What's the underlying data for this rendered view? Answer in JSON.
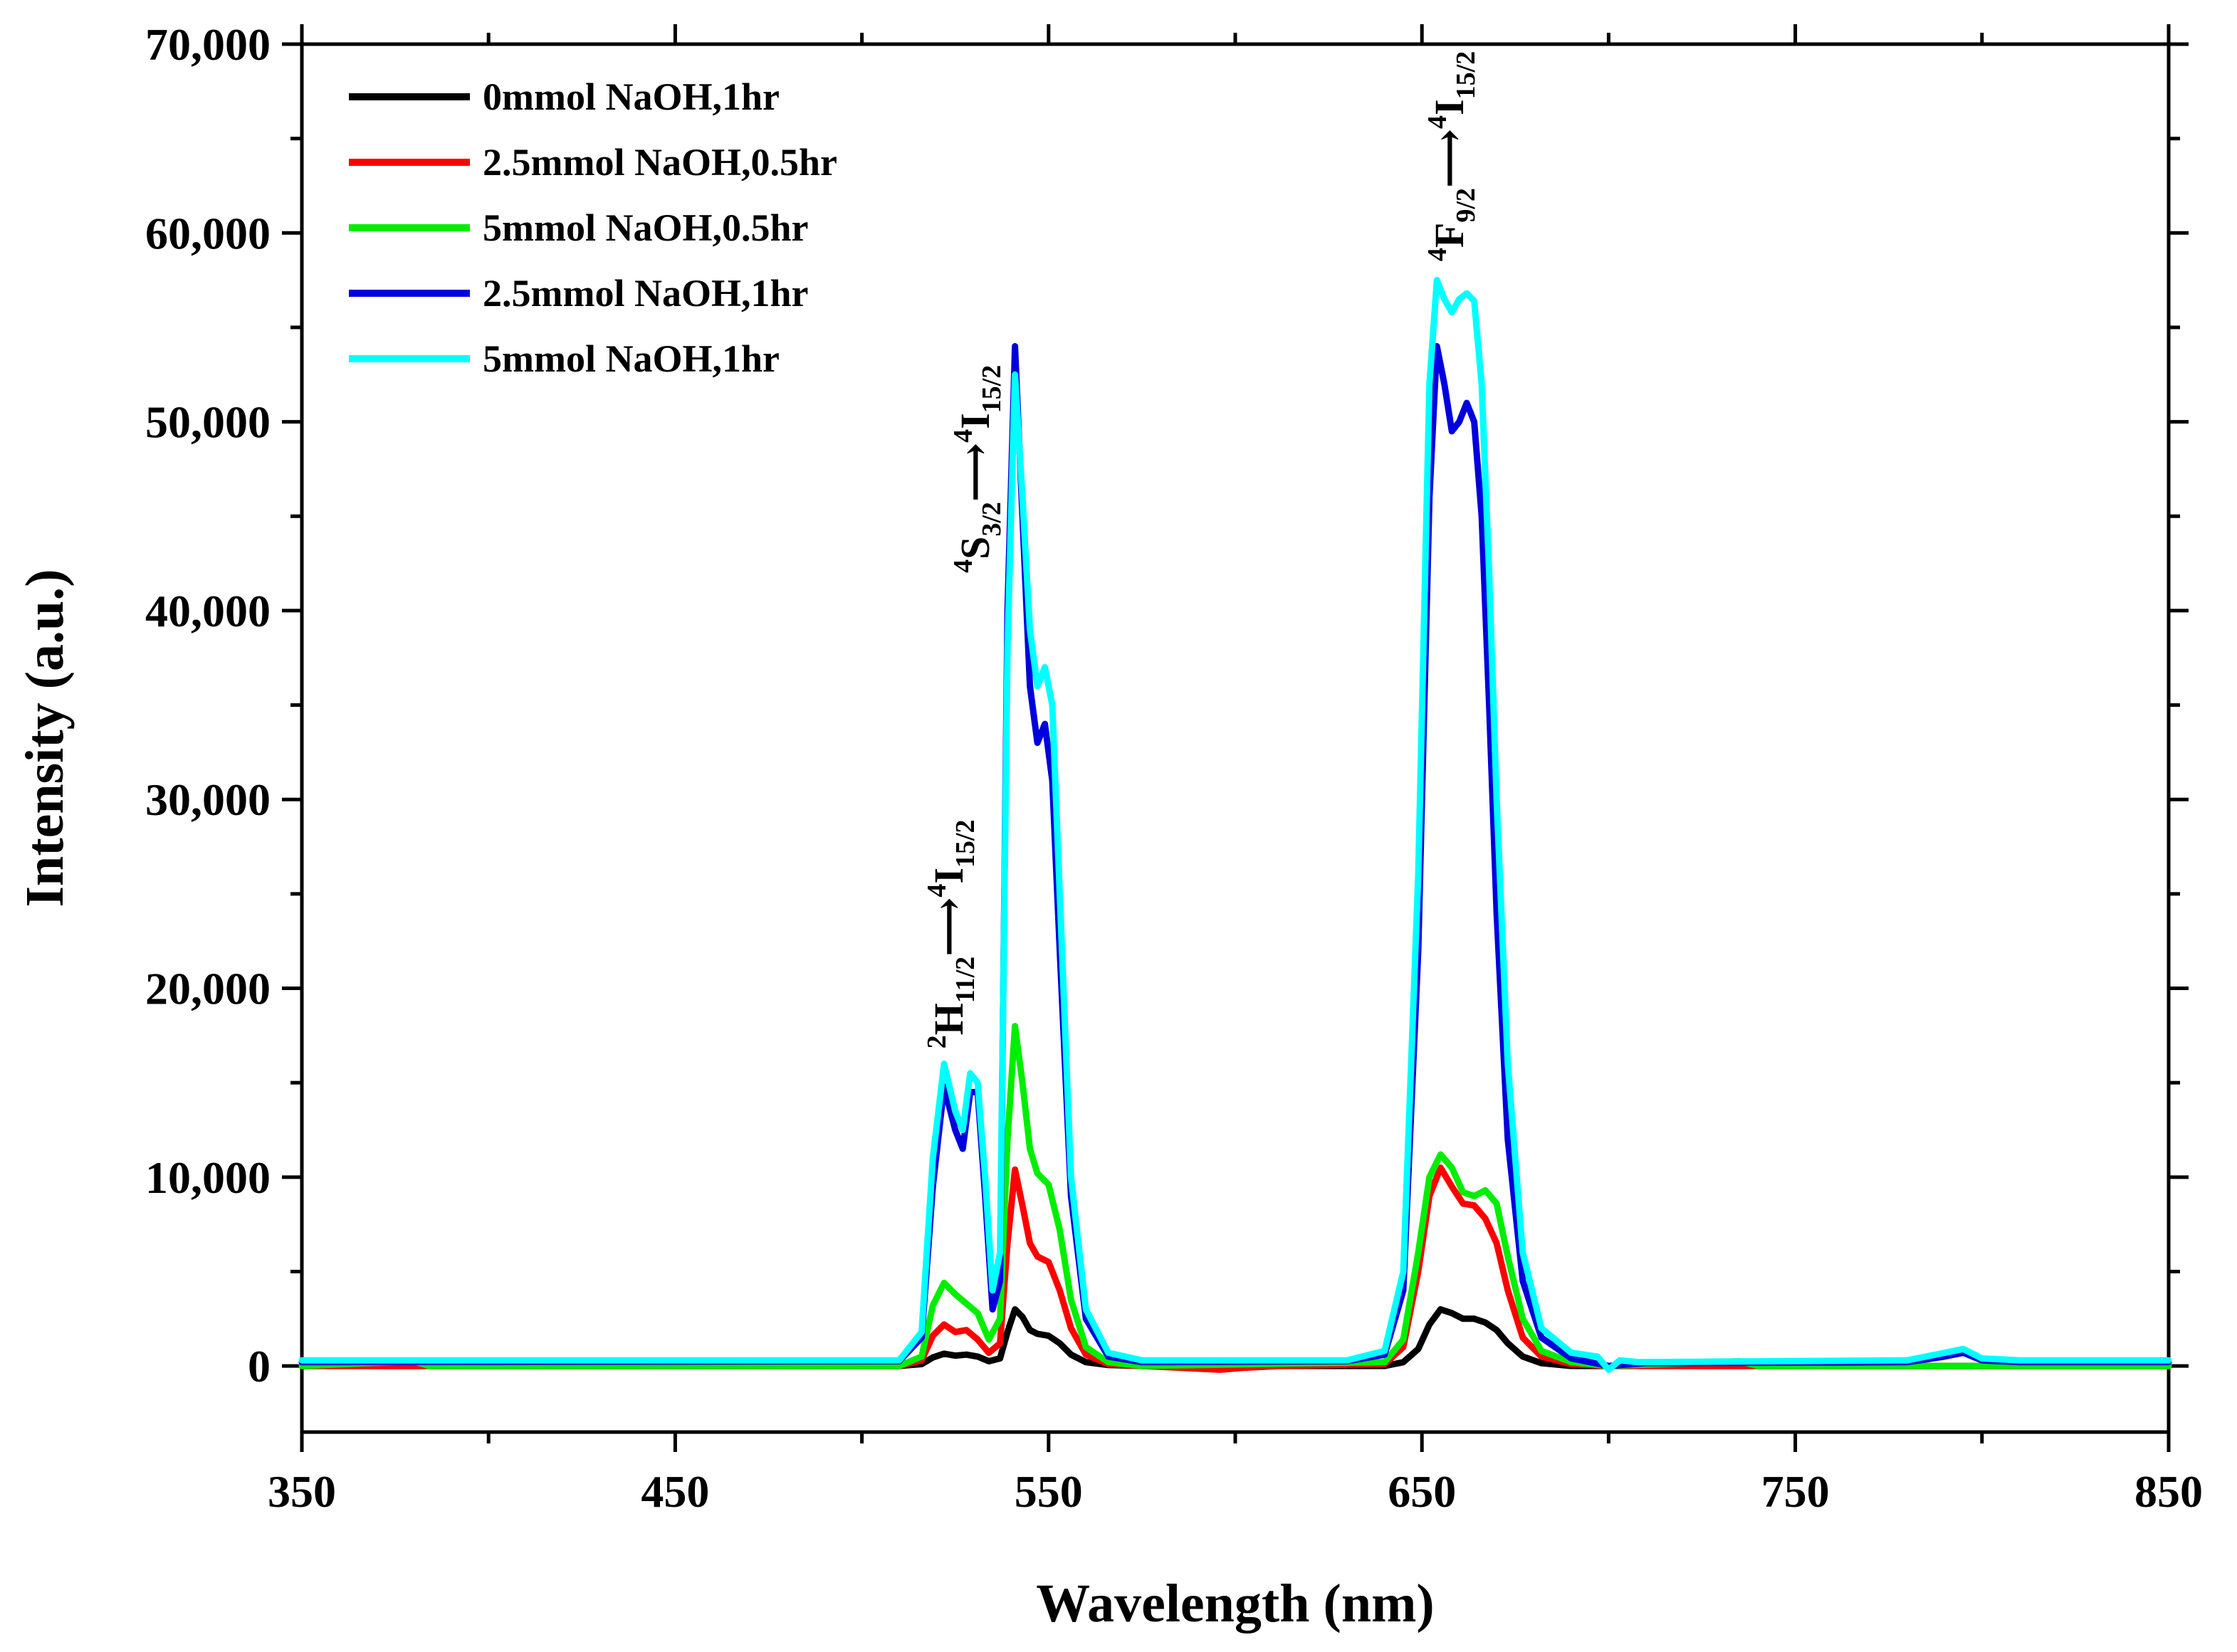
{
  "chart_data": {
    "type": "line",
    "xlabel": "Wavelength (nm)",
    "ylabel": "Intensity (a.u.)",
    "xlim": [
      350,
      850
    ],
    "ylim": [
      -3500,
      70000
    ],
    "xticks": [
      350,
      450,
      550,
      650,
      750,
      850
    ],
    "xtick_labels": [
      "350",
      "450",
      "550",
      "650",
      "750",
      "850"
    ],
    "xminor": [
      400,
      500,
      600,
      700,
      800
    ],
    "yticks": [
      0,
      10000,
      20000,
      30000,
      40000,
      50000,
      60000,
      70000
    ],
    "ytick_labels": [
      "0",
      "10,000",
      "20,000",
      "30,000",
      "40,000",
      "50,000",
      "60,000",
      "70,000"
    ],
    "yminor": [
      5000,
      15000,
      25000,
      35000,
      45000,
      55000,
      65000
    ],
    "grid": false,
    "legend_position": "top-left",
    "series": [
      {
        "name": "0mmol NaOH,1hr",
        "color": "#000000",
        "points": [
          [
            350,
            0
          ],
          [
            510,
            0
          ],
          [
            516,
            100
          ],
          [
            519,
            450
          ],
          [
            522,
            650
          ],
          [
            525,
            550
          ],
          [
            528,
            600
          ],
          [
            531,
            500
          ],
          [
            534,
            250
          ],
          [
            537,
            400
          ],
          [
            539,
            1800
          ],
          [
            541,
            3000
          ],
          [
            543,
            2600
          ],
          [
            545,
            1900
          ],
          [
            547,
            1700
          ],
          [
            550,
            1600
          ],
          [
            553,
            1200
          ],
          [
            556,
            600
          ],
          [
            560,
            200
          ],
          [
            566,
            50
          ],
          [
            575,
            0
          ],
          [
            640,
            0
          ],
          [
            645,
            200
          ],
          [
            649,
            900
          ],
          [
            652,
            2200
          ],
          [
            655,
            3000
          ],
          [
            658,
            2800
          ],
          [
            661,
            2500
          ],
          [
            664,
            2500
          ],
          [
            667,
            2300
          ],
          [
            670,
            1900
          ],
          [
            673,
            1200
          ],
          [
            677,
            500
          ],
          [
            682,
            150
          ],
          [
            690,
            0
          ],
          [
            850,
            0
          ]
        ]
      },
      {
        "name": "2.5mmol NaOH,0.5hr",
        "color": "#ff0000",
        "points": [
          [
            350,
            0
          ],
          [
            510,
            0
          ],
          [
            516,
            300
          ],
          [
            519,
            1600
          ],
          [
            522,
            2200
          ],
          [
            525,
            1800
          ],
          [
            528,
            1900
          ],
          [
            531,
            1400
          ],
          [
            534,
            700
          ],
          [
            537,
            1200
          ],
          [
            539,
            6500
          ],
          [
            541,
            10400
          ],
          [
            543,
            8500
          ],
          [
            545,
            6500
          ],
          [
            547,
            5800
          ],
          [
            550,
            5500
          ],
          [
            553,
            4000
          ],
          [
            556,
            2000
          ],
          [
            560,
            600
          ],
          [
            566,
            100
          ],
          [
            575,
            0
          ],
          [
            596,
            -200
          ],
          [
            602,
            -100
          ],
          [
            612,
            0
          ],
          [
            640,
            100
          ],
          [
            645,
            1000
          ],
          [
            649,
            5000
          ],
          [
            652,
            9000
          ],
          [
            655,
            10500
          ],
          [
            658,
            9500
          ],
          [
            661,
            8600
          ],
          [
            664,
            8500
          ],
          [
            667,
            7800
          ],
          [
            670,
            6500
          ],
          [
            673,
            4000
          ],
          [
            677,
            1500
          ],
          [
            682,
            500
          ],
          [
            690,
            100
          ],
          [
            700,
            0
          ],
          [
            850,
            0
          ]
        ]
      },
      {
        "name": "5mmol NaOH,0.5hr",
        "color": "#00ee00",
        "points": [
          [
            350,
            0
          ],
          [
            380,
            250
          ],
          [
            384,
            0
          ],
          [
            510,
            0
          ],
          [
            516,
            500
          ],
          [
            519,
            3200
          ],
          [
            522,
            4400
          ],
          [
            525,
            3800
          ],
          [
            528,
            3300
          ],
          [
            531,
            2800
          ],
          [
            534,
            1400
          ],
          [
            537,
            2500
          ],
          [
            539,
            12000
          ],
          [
            541,
            18000
          ],
          [
            543,
            15000
          ],
          [
            545,
            11500
          ],
          [
            547,
            10200
          ],
          [
            550,
            9600
          ],
          [
            553,
            7200
          ],
          [
            556,
            3500
          ],
          [
            560,
            1000
          ],
          [
            566,
            200
          ],
          [
            575,
            0
          ],
          [
            640,
            200
          ],
          [
            645,
            1400
          ],
          [
            649,
            6000
          ],
          [
            652,
            10000
          ],
          [
            655,
            11200
          ],
          [
            658,
            10500
          ],
          [
            661,
            9200
          ],
          [
            664,
            9000
          ],
          [
            667,
            9300
          ],
          [
            670,
            8600
          ],
          [
            673,
            5800
          ],
          [
            677,
            2500
          ],
          [
            682,
            800
          ],
          [
            690,
            200
          ],
          [
            700,
            0
          ],
          [
            735,
            250
          ],
          [
            740,
            0
          ],
          [
            850,
            0
          ]
        ]
      },
      {
        "name": "2.5mmol NaOH,1hr",
        "color": "#0000dd",
        "points": [
          [
            350,
            200
          ],
          [
            510,
            250
          ],
          [
            516,
            1500
          ],
          [
            519,
            9500
          ],
          [
            522,
            14800
          ],
          [
            525,
            12500
          ],
          [
            527,
            11500
          ],
          [
            529,
            14500
          ],
          [
            531,
            14500
          ],
          [
            533,
            9000
          ],
          [
            535,
            3000
          ],
          [
            537,
            4500
          ],
          [
            539,
            40000
          ],
          [
            541,
            54000
          ],
          [
            543,
            45000
          ],
          [
            545,
            36000
          ],
          [
            547,
            33000
          ],
          [
            549,
            34000
          ],
          [
            551,
            31000
          ],
          [
            553,
            22000
          ],
          [
            556,
            9000
          ],
          [
            560,
            2500
          ],
          [
            566,
            500
          ],
          [
            575,
            200
          ],
          [
            630,
            250
          ],
          [
            640,
            600
          ],
          [
            645,
            4000
          ],
          [
            649,
            22000
          ],
          [
            652,
            46000
          ],
          [
            654,
            54000
          ],
          [
            656,
            52000
          ],
          [
            658,
            49500
          ],
          [
            660,
            50000
          ],
          [
            662,
            51000
          ],
          [
            664,
            50000
          ],
          [
            666,
            45000
          ],
          [
            668,
            35000
          ],
          [
            670,
            24000
          ],
          [
            673,
            12000
          ],
          [
            677,
            4500
          ],
          [
            682,
            1500
          ],
          [
            690,
            400
          ],
          [
            700,
            0
          ],
          [
            710,
            150
          ],
          [
            780,
            200
          ],
          [
            790,
            500
          ],
          [
            795,
            700
          ],
          [
            800,
            300
          ],
          [
            810,
            200
          ],
          [
            850,
            200
          ]
        ]
      },
      {
        "name": "5mmol NaOH,1hr",
        "color": "#00ffff",
        "points": [
          [
            350,
            300
          ],
          [
            510,
            300
          ],
          [
            516,
            1800
          ],
          [
            519,
            11000
          ],
          [
            522,
            16000
          ],
          [
            525,
            13500
          ],
          [
            527,
            12500
          ],
          [
            529,
            15500
          ],
          [
            531,
            15000
          ],
          [
            533,
            10000
          ],
          [
            535,
            4000
          ],
          [
            537,
            6000
          ],
          [
            539,
            38000
          ],
          [
            541,
            52500
          ],
          [
            543,
            46000
          ],
          [
            545,
            39000
          ],
          [
            547,
            36000
          ],
          [
            549,
            37000
          ],
          [
            551,
            35000
          ],
          [
            553,
            25000
          ],
          [
            556,
            10000
          ],
          [
            560,
            3000
          ],
          [
            566,
            700
          ],
          [
            575,
            300
          ],
          [
            630,
            300
          ],
          [
            640,
            800
          ],
          [
            645,
            5000
          ],
          [
            649,
            26000
          ],
          [
            652,
            52000
          ],
          [
            654,
            57500
          ],
          [
            656,
            56500
          ],
          [
            658,
            55800
          ],
          [
            660,
            56500
          ],
          [
            662,
            56800
          ],
          [
            664,
            56400
          ],
          [
            666,
            52000
          ],
          [
            668,
            42000
          ],
          [
            670,
            30000
          ],
          [
            673,
            16000
          ],
          [
            677,
            6000
          ],
          [
            682,
            2000
          ],
          [
            690,
            700
          ],
          [
            697,
            500
          ],
          [
            700,
            -200
          ],
          [
            703,
            300
          ],
          [
            708,
            200
          ],
          [
            780,
            300
          ],
          [
            790,
            700
          ],
          [
            795,
            900
          ],
          [
            800,
            400
          ],
          [
            810,
            300
          ],
          [
            850,
            300
          ]
        ]
      }
    ],
    "annotations": [
      {
        "sup1": "2",
        "letter1": "H",
        "sub1": "11/2",
        "arrow": "⟶",
        "sup2": "4",
        "letter2": "I",
        "sub2": "15/2",
        "x": 527,
        "y": 16800
      },
      {
        "sup1": "4",
        "letter1": "S",
        "sub1": "3/2",
        "arrow": "⟶",
        "sup2": "4",
        "letter2": "I",
        "sub2": "15/2",
        "x": 534,
        "y": 42000
      },
      {
        "sup1": "4",
        "letter1": "F",
        "sub1": "9/2",
        "arrow": "⟶",
        "sup2": "4",
        "letter2": "I",
        "sub2": "15/2",
        "x": 661,
        "y": 58500
      }
    ]
  }
}
